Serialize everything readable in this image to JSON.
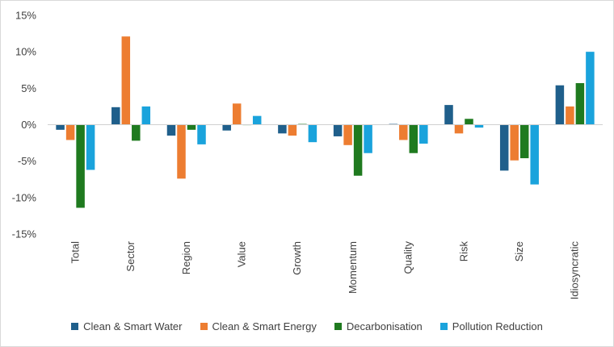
{
  "chart_data": {
    "type": "bar",
    "title": "",
    "xlabel": "",
    "ylabel": "",
    "ylim": [
      -0.15,
      0.15
    ],
    "yticks": [
      {
        "value": 0.15,
        "label": "15%"
      },
      {
        "value": 0.1,
        "label": "10%"
      },
      {
        "value": 0.05,
        "label": "5%"
      },
      {
        "value": 0.0,
        "label": "0%"
      },
      {
        "value": -0.05,
        "label": "-5%"
      },
      {
        "value": -0.1,
        "label": "-10%"
      },
      {
        "value": -0.15,
        "label": "-15%"
      }
    ],
    "categories": [
      "Total",
      "Sector",
      "Region",
      "Value",
      "Growth",
      "Momentum",
      "Quality",
      "Risk",
      "Size",
      "Idiosyncratic"
    ],
    "grid": false,
    "legend_position": "bottom",
    "series": [
      {
        "name": "Clean & Smart Water",
        "color": "#1f5f8b",
        "values": [
          -0.007,
          0.024,
          -0.015,
          -0.008,
          -0.012,
          -0.016,
          0.001,
          0.027,
          -0.063,
          0.054
        ]
      },
      {
        "name": "Clean & Smart Energy",
        "color": "#ed7d31",
        "values": [
          -0.021,
          0.121,
          -0.074,
          0.029,
          -0.015,
          -0.028,
          -0.021,
          -0.012,
          -0.049,
          0.025
        ]
      },
      {
        "name": "Decarbonisation",
        "color": "#1f7a1f",
        "values": [
          -0.114,
          -0.022,
          -0.007,
          0.0,
          0.001,
          -0.07,
          -0.039,
          0.008,
          -0.046,
          0.057
        ]
      },
      {
        "name": "Pollution Reduction",
        "color": "#1aa3dc",
        "values": [
          -0.062,
          0.025,
          -0.027,
          0.012,
          -0.024,
          -0.039,
          -0.026,
          -0.004,
          -0.082,
          0.1
        ]
      }
    ]
  }
}
